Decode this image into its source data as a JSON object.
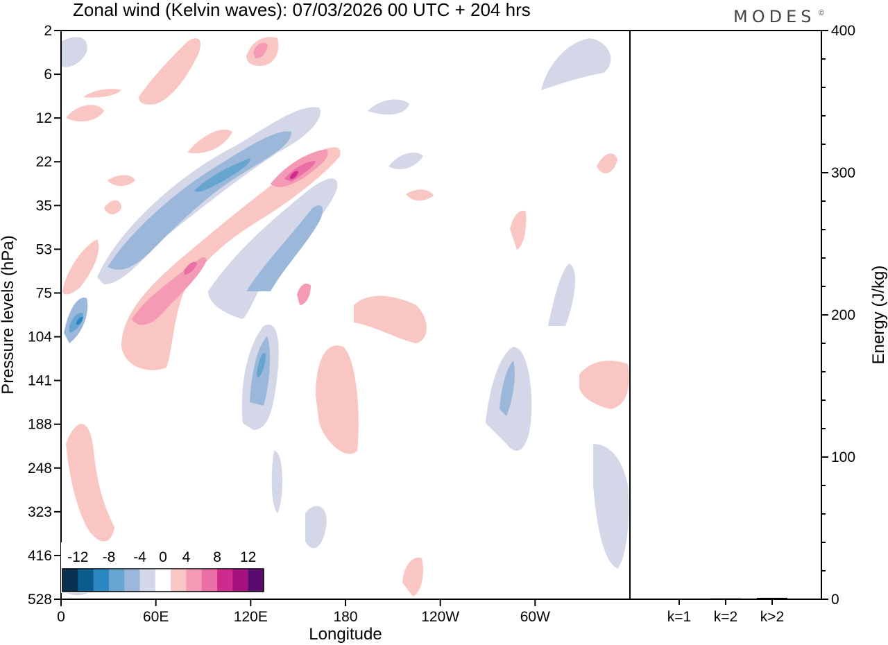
{
  "header": {
    "title": "Zonal wind (Kelvin waves):  07/03/2026  00 UTC  + 204 hrs",
    "brand": "MODES",
    "brand_mark": "©"
  },
  "chart_data": [
    {
      "type": "heatmap",
      "title": "Zonal wind (Kelvin waves):  07/03/2026  00 UTC  + 204 hrs",
      "xlabel": "Longitude",
      "ylabel": "Pressure levels (hPa)",
      "x_ticks": [
        {
          "lon": 0,
          "label": "0"
        },
        {
          "lon": 60,
          "label": "60E"
        },
        {
          "lon": 120,
          "label": "120E"
        },
        {
          "lon": 180,
          "label": "180"
        },
        {
          "lon": 240,
          "label": "120W"
        },
        {
          "lon": 300,
          "label": "60W"
        }
      ],
      "xlim": [
        0,
        360
      ],
      "y_ticks": [
        "2",
        "6",
        "12",
        "22",
        "35",
        "53",
        "75",
        "104",
        "141",
        "188",
        "248",
        "323",
        "416",
        "528"
      ],
      "colorbar": {
        "labels": [
          "-12",
          "-8",
          "-4",
          "0",
          "4",
          "8",
          "12"
        ],
        "levels": [
          -14,
          -12,
          -10,
          -8,
          -6,
          -4,
          -2,
          2,
          4,
          6,
          8,
          10,
          12,
          14
        ],
        "colors": [
          "#08304f",
          "#0b5d8f",
          "#2a87bf",
          "#66a5cf",
          "#9bb8da",
          "#d4d7e8",
          "#ffffff",
          "#f9c6c3",
          "#f59ab4",
          "#ec6ea7",
          "#cf2b8f",
          "#a3127e",
          "#5b0a6e"
        ],
        "placement": "bottom-left"
      },
      "features": [
        {
          "color": "#d4d7e8",
          "lon": [
            40,
            175
          ],
          "level_index": [
            3,
            6
          ],
          "sign": "negative"
        },
        {
          "color": "#9bb8da",
          "lon": [
            55,
            150
          ],
          "level_index": [
            3.5,
            5.5
          ],
          "sign": "negative"
        },
        {
          "color": "#66a5cf",
          "lon": [
            85,
            120
          ],
          "level_index": [
            3.3,
            4
          ],
          "sign": "negative"
        },
        {
          "color": "#f9c6c3",
          "lon": [
            35,
            180
          ],
          "level_index": [
            3,
            7.5
          ],
          "sign": "positive"
        },
        {
          "color": "#f59ab4",
          "lon": [
            45,
            105
          ],
          "level_index": [
            5.5,
            7
          ],
          "sign": "positive"
        },
        {
          "color": "#ec6ea7",
          "lon": [
            130,
            170
          ],
          "level_index": [
            3,
            4.2
          ],
          "sign": "positive"
        },
        {
          "color": "#9bb8da",
          "lon": [
            0,
            20
          ],
          "level_index": [
            6.5,
            7.3
          ],
          "sign": "negative"
        },
        {
          "color": "#9bb8da",
          "lon": [
            115,
            130
          ],
          "level_index": [
            8,
            9
          ],
          "sign": "negative"
        },
        {
          "color": "#f9c6c3",
          "lon": [
            160,
            190
          ],
          "level_index": [
            8,
            10
          ],
          "sign": "positive"
        },
        {
          "color": "#f9c6c3",
          "lon": [
            0,
            35
          ],
          "level_index": [
            9,
            12
          ],
          "sign": "positive"
        },
        {
          "color": "#9bb8da",
          "lon": [
            275,
            290
          ],
          "level_index": [
            8,
            9.5
          ],
          "sign": "negative"
        },
        {
          "color": "#f9c6c3",
          "lon": [
            330,
            360
          ],
          "level_index": [
            8,
            9
          ],
          "sign": "positive"
        },
        {
          "color": "#d4d7e8",
          "lon": [
            330,
            360
          ],
          "level_index": [
            10,
            13
          ],
          "sign": "negative"
        },
        {
          "color": "#f9c6c3",
          "lon": [
            195,
            230
          ],
          "level_index": [
            12.5,
            13.5
          ],
          "sign": "positive"
        }
      ]
    },
    {
      "type": "bar",
      "categories": [
        "k=1",
        "k=2",
        "k>2"
      ],
      "values": [
        0.3,
        0.6,
        1.0
      ],
      "ylabel": "Energy (J/kg)",
      "ylim": [
        0,
        400
      ],
      "y_major_ticks": [
        0,
        100,
        200,
        300,
        400
      ],
      "y_minor_step": 20
    }
  ]
}
